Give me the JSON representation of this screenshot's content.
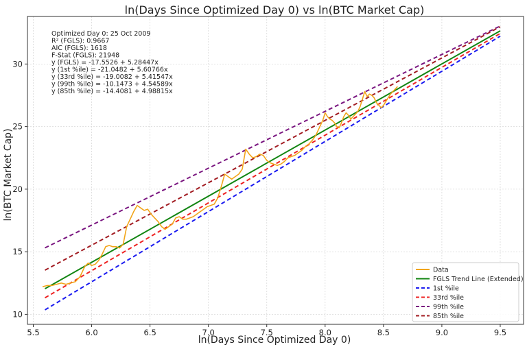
{
  "chart_data": {
    "type": "line",
    "title": "ln(Days Since Optimized Day 0) vs ln(BTC Market Cap)",
    "xlabel": "ln(Days Since Optimized Day 0)",
    "ylabel": "ln(BTC Market Cap)",
    "xlim": [
      5.45,
      9.7
    ],
    "ylim": [
      9.2,
      33.8
    ],
    "xticks": [
      5.5,
      6.0,
      6.5,
      7.0,
      7.5,
      8.0,
      8.5,
      9.0,
      9.5
    ],
    "xtick_labels": [
      "5.5",
      "6.0",
      "6.5",
      "7.0",
      "7.5",
      "8.0",
      "8.5",
      "9.0",
      "9.5"
    ],
    "yticks": [
      10,
      15,
      20,
      25,
      30
    ],
    "ytick_labels": [
      "10",
      "15",
      "20",
      "25",
      "30"
    ],
    "grid": true,
    "legend_position": "bottom-right",
    "annotations": [
      "Optimized Day 0: 25 Oct 2009",
      "R² (FGLS): 0.9667",
      "AIC (FGLS): 1618",
      "F-Stat (FGLS): 21948",
      "y (FGLS) = -17.5526 + 5.28447x",
      "y (1st %ile) = -21.0482 + 5.60766x",
      "y (33rd %ile) = -19.0082 + 5.41547x",
      "y (99th %ile) = -10.1473 + 4.54589x",
      "y (85th %ile) = -14.4081 + 4.98815x"
    ],
    "series": [
      {
        "name": "Data",
        "color": "#f2a51a",
        "style": "solid",
        "x": [
          5.58,
          5.62,
          5.66,
          5.7,
          5.74,
          5.78,
          5.82,
          5.86,
          5.9,
          5.94,
          5.97,
          6.0,
          6.03,
          6.06,
          6.09,
          6.12,
          6.15,
          6.18,
          6.21,
          6.24,
          6.27,
          6.3,
          6.33,
          6.36,
          6.39,
          6.42,
          6.45,
          6.48,
          6.51,
          6.54,
          6.57,
          6.6,
          6.63,
          6.66,
          6.69,
          6.72,
          6.75,
          6.78,
          6.81,
          6.84,
          6.87,
          6.9,
          6.93,
          6.96,
          6.99,
          7.02,
          7.05,
          7.08,
          7.11,
          7.14,
          7.17,
          7.2,
          7.23,
          7.26,
          7.29,
          7.32,
          7.35,
          7.38,
          7.41,
          7.44,
          7.47,
          7.5,
          7.53,
          7.56,
          7.59,
          7.62,
          7.65,
          7.68,
          7.71,
          7.74,
          7.77,
          7.8,
          7.83,
          7.86,
          7.89,
          7.92,
          7.95,
          7.98,
          8.0,
          8.02,
          8.04,
          8.06,
          8.08,
          8.1,
          8.12,
          8.14,
          8.16,
          8.18,
          8.2,
          8.22,
          8.24,
          8.26,
          8.28,
          8.3,
          8.32,
          8.34,
          8.36,
          8.38,
          8.4,
          8.42,
          8.44,
          8.46,
          8.48,
          8.5,
          8.52,
          8.54,
          8.56,
          8.58,
          8.6,
          8.62
        ],
        "values": [
          12.2,
          12.3,
          12.3,
          12.4,
          12.5,
          12.4,
          12.5,
          12.6,
          13.0,
          13.8,
          14.1,
          13.9,
          14.0,
          14.3,
          14.8,
          15.4,
          15.5,
          15.4,
          15.4,
          15.3,
          15.6,
          17.0,
          17.6,
          18.2,
          18.7,
          18.5,
          18.3,
          18.4,
          18.0,
          17.7,
          17.4,
          17.0,
          16.8,
          17.0,
          17.2,
          17.7,
          17.8,
          17.6,
          17.6,
          17.7,
          17.8,
          18.0,
          18.2,
          18.4,
          18.6,
          18.7,
          18.8,
          19.3,
          20.2,
          21.2,
          21.0,
          20.8,
          21.0,
          21.2,
          21.6,
          23.2,
          22.8,
          22.5,
          22.6,
          22.8,
          22.7,
          22.3,
          22.1,
          22.0,
          21.9,
          22.0,
          22.2,
          22.5,
          22.6,
          22.7,
          22.9,
          23.1,
          23.4,
          23.6,
          23.9,
          24.3,
          24.9,
          25.5,
          26.1,
          25.8,
          25.6,
          25.5,
          25.3,
          25.0,
          24.9,
          25.3,
          25.8,
          26.1,
          25.9,
          25.6,
          25.8,
          26.0,
          26.2,
          26.6,
          27.2,
          27.8,
          27.4,
          27.6,
          27.5,
          27.3,
          26.9,
          26.7,
          26.5,
          26.7,
          27.0,
          27.3,
          27.6,
          27.8,
          28.0,
          28.2
        ]
      },
      {
        "name": "FGLS Trend Line (Extended)",
        "color": "#128512",
        "style": "solid",
        "intercept": -17.5526,
        "slope": 5.28447
      },
      {
        "name": "1st %ile",
        "color": "#1a1af0",
        "style": "dashed",
        "intercept": -21.0482,
        "slope": 5.60766
      },
      {
        "name": "33rd %ile",
        "color": "#ee2222",
        "style": "dashed",
        "intercept": -19.0082,
        "slope": 5.41547
      },
      {
        "name": "99th %ile",
        "color": "#7a1680",
        "style": "dashed",
        "intercept": -10.1473,
        "slope": 4.54589
      },
      {
        "name": "85th %ile",
        "color": "#a21c22",
        "style": "dashed",
        "intercept": -14.4081,
        "slope": 4.98815
      }
    ],
    "line_x_range": [
      5.6,
      9.5
    ]
  }
}
